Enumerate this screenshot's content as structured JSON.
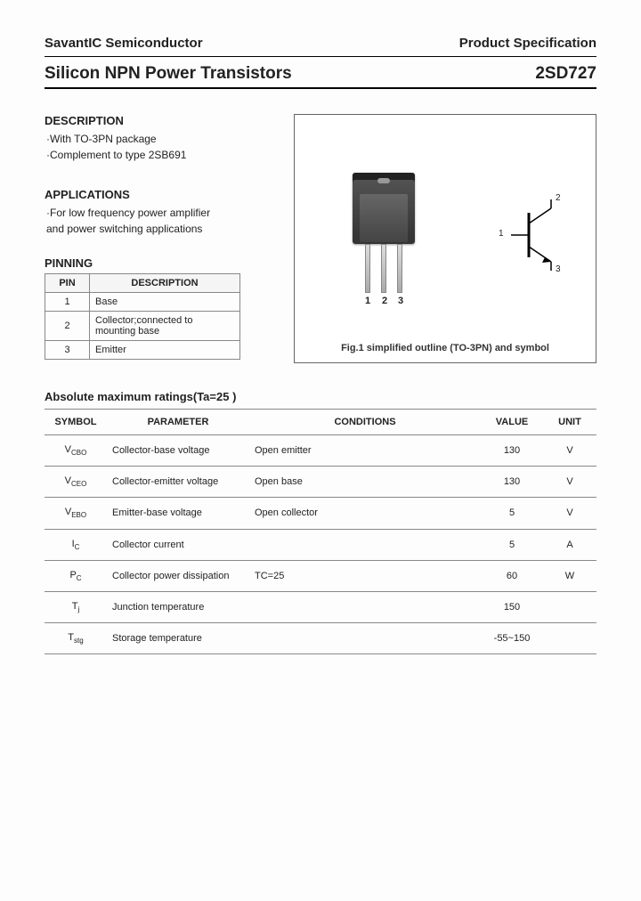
{
  "header": {
    "company": "SavantIC Semiconductor",
    "doc_type": "Product Specification"
  },
  "title": {
    "heading": "Silicon NPN Power Transistors",
    "part_no": "2SD727"
  },
  "description": {
    "heading": "DESCRIPTION",
    "lines": [
      "·With TO-3PN package",
      "·Complement to type 2SB691"
    ]
  },
  "applications": {
    "heading": "APPLICATIONS",
    "lines": [
      "·For low frequency power amplifier",
      "  and power switching applications"
    ]
  },
  "pinning": {
    "heading": "PINNING",
    "col_pin": "PIN",
    "col_desc": "DESCRIPTION",
    "rows": [
      {
        "pin": "1",
        "desc": "Base"
      },
      {
        "pin": "2",
        "desc": "Collector;connected to mounting base"
      },
      {
        "pin": "3",
        "desc": "Emitter"
      }
    ]
  },
  "figure": {
    "caption": "Fig.1 simplified outline (TO-3PN) and symbol",
    "pin_labels": {
      "p1": "1",
      "p2": "2",
      "p3": "3"
    },
    "sym_labels": {
      "base": "1",
      "collector": "2",
      "emitter": "3"
    }
  },
  "ratings": {
    "heading": "Absolute maximum ratings(Ta=25 )",
    "columns": {
      "symbol": "SYMBOL",
      "parameter": "PARAMETER",
      "conditions": "CONDITIONS",
      "value": "VALUE",
      "unit": "UNIT"
    },
    "rows": [
      {
        "sym_main": "V",
        "sym_sub": "CBO",
        "param": "Collector-base voltage",
        "cond": "Open emitter",
        "value": "130",
        "unit": "V"
      },
      {
        "sym_main": "V",
        "sym_sub": "CEO",
        "param": "Collector-emitter voltage",
        "cond": "Open base",
        "value": "130",
        "unit": "V"
      },
      {
        "sym_main": "V",
        "sym_sub": "EBO",
        "param": "Emitter-base voltage",
        "cond": "Open collector",
        "value": "5",
        "unit": "V"
      },
      {
        "sym_main": "I",
        "sym_sub": "C",
        "param": "Collector current",
        "cond": "",
        "value": "5",
        "unit": "A"
      },
      {
        "sym_main": "P",
        "sym_sub": "C",
        "param": "Collector power dissipation",
        "cond": "TC=25 ",
        "value": "60",
        "unit": "W"
      },
      {
        "sym_main": "T",
        "sym_sub": "j",
        "param": "Junction temperature",
        "cond": "",
        "value": "150",
        "unit": ""
      },
      {
        "sym_main": "T",
        "sym_sub": "stg",
        "param": "Storage temperature",
        "cond": "",
        "value": "-55~150",
        "unit": ""
      }
    ],
    "col_widths": {
      "symbol": "70px",
      "parameter": "160px",
      "conditions": "200px",
      "value": "70px",
      "unit": "60px"
    }
  },
  "colors": {
    "rule": "#000000",
    "border": "#888888",
    "text": "#222222"
  }
}
